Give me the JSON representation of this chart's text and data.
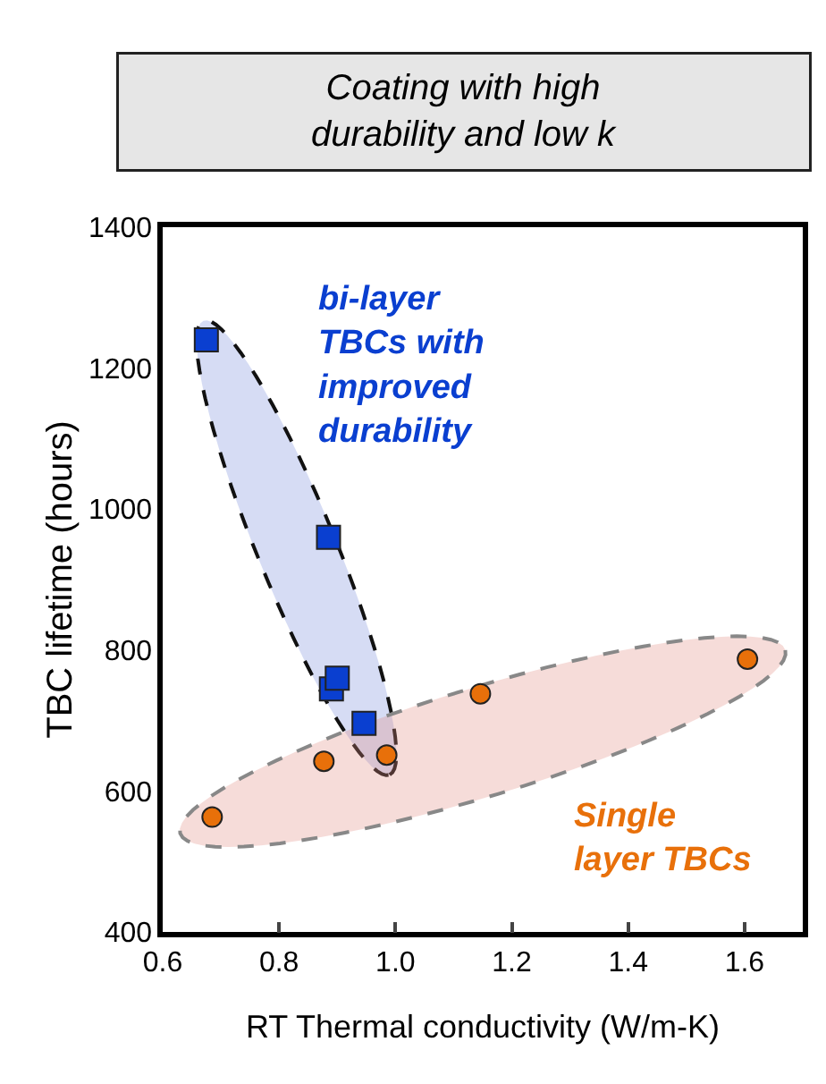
{
  "chart_data": {
    "type": "scatter",
    "title": "Coating with high\ndurability and low k",
    "xlabel": "RT Thermal conductivity (W/m-K)",
    "ylabel": "TBC lifetime (hours)",
    "series": [
      {
        "name": "bi-layer\nTBCs with\nimproved\ndurability",
        "color": "#0a3fd0",
        "marker": "square",
        "x": [
          0.675,
          0.885,
          0.89,
          0.9,
          0.946
        ],
        "values": [
          1240,
          960,
          745,
          760,
          696
        ]
      },
      {
        "name": "Single\nlayer TBCs",
        "color": "#e8700a",
        "marker": "circle",
        "x": [
          0.685,
          0.877,
          0.985,
          1.146,
          1.605
        ],
        "values": [
          563,
          642,
          651,
          738,
          787
        ]
      }
    ],
    "xlim": [
      0.6,
      1.7
    ],
    "xticks": [
      0.6,
      0.8,
      {
        "value": 1,
        "label": "1.0"
      },
      1.2,
      1.4,
      1.6
    ],
    "ylim": [
      400,
      1400
    ],
    "yticks": [
      400,
      600,
      800,
      1000,
      1200,
      1400
    ],
    "grid": false
  }
}
